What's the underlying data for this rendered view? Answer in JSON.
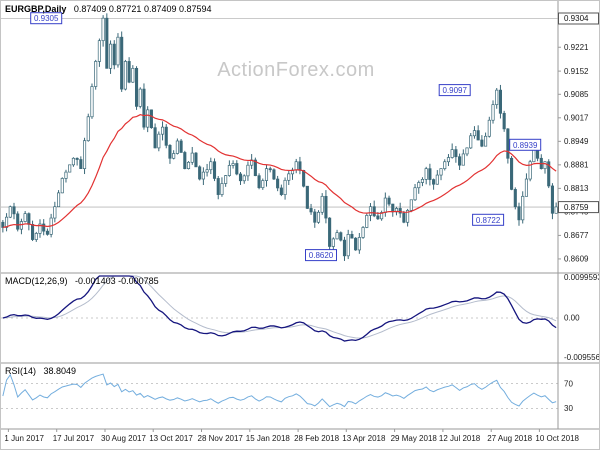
{
  "title": {
    "symbol": "EURGBP,Daily",
    "ohlc": "0.87409 0.87721 0.87409 0.87594"
  },
  "watermark": "ActionForex.com",
  "colors": {
    "candle": "#3a6878",
    "ma_line": "#e23232",
    "macd_main": "#15157e",
    "macd_signal": "#b4bccc",
    "rsi_line": "#74aede",
    "annotation": "#3640c8",
    "grid": "#b8b8b8",
    "axis_text": "#1a1a1a",
    "divider": "#9a9a9a"
  },
  "chart_data": {
    "type": "candlestick",
    "symbol": "EURGBP",
    "timeframe": "Daily",
    "num_candles": 150,
    "ma_period": 28,
    "last_candle": {
      "o": 0.87409,
      "h": 0.87721,
      "l": 0.87409,
      "c": 0.87594
    },
    "price_waypoints": [
      [
        0,
        0.87
      ],
      [
        2,
        0.876
      ],
      [
        4,
        0.8695
      ],
      [
        6,
        0.874
      ],
      [
        8,
        0.8665
      ],
      [
        10,
        0.871
      ],
      [
        12,
        0.868
      ],
      [
        14,
        0.876
      ],
      [
        15,
        0.88
      ],
      [
        17,
        0.886
      ],
      [
        19,
        0.89
      ],
      [
        21,
        0.887
      ],
      [
        23,
        0.902
      ],
      [
        25,
        0.918
      ],
      [
        26,
        0.924
      ],
      [
        27,
        0.9305
      ],
      [
        28,
        0.916
      ],
      [
        29,
        0.923
      ],
      [
        30,
        0.917
      ],
      [
        31,
        0.925
      ],
      [
        32,
        0.91
      ],
      [
        33,
        0.918
      ],
      [
        34,
        0.912
      ],
      [
        35,
        0.916
      ],
      [
        36,
        0.905
      ],
      [
        37,
        0.91
      ],
      [
        38,
        0.899
      ],
      [
        39,
        0.904
      ],
      [
        41,
        0.893
      ],
      [
        43,
        0.899
      ],
      [
        45,
        0.89
      ],
      [
        47,
        0.895
      ],
      [
        49,
        0.887
      ],
      [
        51,
        0.8915
      ],
      [
        53,
        0.884
      ],
      [
        54,
        0.886
      ],
      [
        56,
        0.889
      ],
      [
        58,
        0.8795
      ],
      [
        60,
        0.885
      ],
      [
        62,
        0.8885
      ],
      [
        64,
        0.8835
      ],
      [
        66,
        0.888
      ],
      [
        67,
        0.8895
      ],
      [
        69,
        0.8815
      ],
      [
        71,
        0.887
      ],
      [
        73,
        0.884
      ],
      [
        75,
        0.8795
      ],
      [
        77,
        0.8855
      ],
      [
        79,
        0.889
      ],
      [
        80,
        0.8865
      ],
      [
        82,
        0.8755
      ],
      [
        84,
        0.8715
      ],
      [
        86,
        0.879
      ],
      [
        88,
        0.8645
      ],
      [
        90,
        0.8685
      ],
      [
        92,
        0.8618
      ],
      [
        93,
        0.868
      ],
      [
        95,
        0.8635
      ],
      [
        97,
        0.87
      ],
      [
        99,
        0.876
      ],
      [
        101,
        0.8725
      ],
      [
        103,
        0.8785
      ],
      [
        105,
        0.8745
      ],
      [
        106,
        0.8755
      ],
      [
        108,
        0.8715
      ],
      [
        110,
        0.878
      ],
      [
        112,
        0.883
      ],
      [
        114,
        0.887
      ],
      [
        116,
        0.8825
      ],
      [
        118,
        0.887
      ],
      [
        119,
        0.889
      ],
      [
        121,
        0.8925
      ],
      [
        123,
        0.888
      ],
      [
        125,
        0.893
      ],
      [
        127,
        0.898
      ],
      [
        129,
        0.8935
      ],
      [
        131,
        0.901
      ],
      [
        132,
        0.9055
      ],
      [
        133,
        0.9097
      ],
      [
        134,
        0.903
      ],
      [
        135,
        0.8985
      ],
      [
        136,
        0.89
      ],
      [
        137,
        0.881
      ],
      [
        138,
        0.876
      ],
      [
        139,
        0.8722
      ],
      [
        140,
        0.879
      ],
      [
        141,
        0.884
      ],
      [
        142,
        0.889
      ],
      [
        143,
        0.8939
      ],
      [
        144,
        0.89
      ],
      [
        145,
        0.887
      ],
      [
        146,
        0.889
      ],
      [
        147,
        0.882
      ],
      [
        148,
        0.8741
      ],
      [
        149,
        0.87594
      ]
    ],
    "price_axis": {
      "labels": [
        "0.9221",
        "0.9152",
        "0.9085",
        "0.9017",
        "0.8949",
        "0.8881",
        "0.8813",
        "0.8745",
        "0.8677",
        "0.8609"
      ],
      "boxed": [
        {
          "label": "0.9304",
          "price": 0.9304
        },
        {
          "label": "0.8759",
          "price": 0.8759
        }
      ],
      "level_lines": [
        0.9304,
        0.8759
      ]
    },
    "annotations": [
      {
        "label": "0.9305",
        "price": 0.9305,
        "idx": 8
      },
      {
        "label": "0.8620",
        "price": 0.862,
        "idx": 82
      },
      {
        "label": "0.9097",
        "price": 0.9097,
        "idx": 118
      },
      {
        "label": "0.8722",
        "price": 0.8722,
        "idx": 127
      },
      {
        "label": "0.8939",
        "price": 0.8939,
        "idx": 137
      }
    ],
    "macd": {
      "title": "MACD(12,26,9)",
      "values": "-0.001403 -0.000785",
      "params": [
        12,
        26,
        9
      ],
      "axis": [
        {
          "label": "0.0099593",
          "value": 0.0099593
        },
        {
          "label": "0.00",
          "value": 0
        },
        {
          "label": "-0.0095562",
          "value": -0.0095562
        }
      ]
    },
    "rsi": {
      "title": "RSI(14)",
      "value": "38.8049",
      "period": 14,
      "levels": [
        70,
        30
      ]
    },
    "dates": [
      {
        "label": "1 Jun 2017",
        "idx": 2
      },
      {
        "label": "17 Jul 2017",
        "idx": 15
      },
      {
        "label": "30 Aug 2017",
        "idx": 28
      },
      {
        "label": "13 Oct 2017",
        "idx": 41
      },
      {
        "label": "28 Nov 2017",
        "idx": 54
      },
      {
        "label": "15 Jan 2018",
        "idx": 67
      },
      {
        "label": "28 Feb 2018",
        "idx": 80
      },
      {
        "label": "13 Apr 2018",
        "idx": 93
      },
      {
        "label": "29 May 2018",
        "idx": 106
      },
      {
        "label": "12 Jul 2018",
        "idx": 119
      },
      {
        "label": "27 Aug 2018",
        "idx": 132
      },
      {
        "label": "10 Oct 2018",
        "idx": 145
      }
    ]
  }
}
